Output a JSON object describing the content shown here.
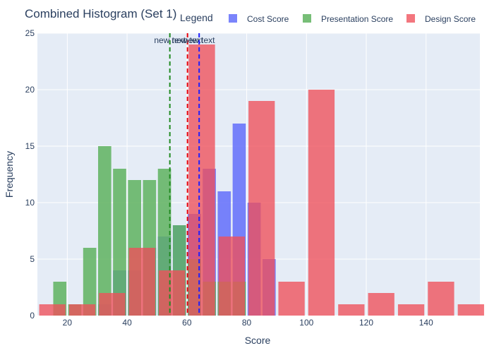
{
  "chart_data": {
    "type": "bar",
    "title": "Combined Histogram (Set 1)",
    "xlabel": "Score",
    "ylabel": "Frequency",
    "xlim": [
      10,
      158
    ],
    "ylim": [
      0,
      25
    ],
    "x_ticks": [
      20,
      40,
      60,
      80,
      100,
      120,
      140
    ],
    "y_ticks": [
      0,
      5,
      10,
      15,
      20,
      25
    ],
    "grid": true,
    "barmode": "overlay",
    "legend": {
      "title": "Legend",
      "placement": "top-right",
      "orientation": "horizontal"
    },
    "series": [
      {
        "name": "Cost Score",
        "color": "#636efa",
        "opacity": 0.85,
        "bin_width": 5,
        "bins": [
          {
            "x0": 30,
            "x1": 35,
            "count": 1
          },
          {
            "x0": 35,
            "x1": 40,
            "count": 4
          },
          {
            "x0": 40,
            "x1": 45,
            "count": 4
          },
          {
            "x0": 45,
            "x1": 50,
            "count": 6
          },
          {
            "x0": 50,
            "x1": 55,
            "count": 7
          },
          {
            "x0": 55,
            "x1": 60,
            "count": 8
          },
          {
            "x0": 60,
            "x1": 65,
            "count": 9
          },
          {
            "x0": 65,
            "x1": 70,
            "count": 13
          },
          {
            "x0": 70,
            "x1": 75,
            "count": 11
          },
          {
            "x0": 75,
            "x1": 80,
            "count": 17
          },
          {
            "x0": 80,
            "x1": 85,
            "count": 10
          },
          {
            "x0": 85,
            "x1": 90,
            "count": 5
          }
        ]
      },
      {
        "name": "Presentation Score",
        "color": "#5fb35f",
        "opacity": 0.85,
        "bin_width": 5,
        "bins": [
          {
            "x0": 15,
            "x1": 20,
            "count": 3
          },
          {
            "x0": 20,
            "x1": 25,
            "count": 1
          },
          {
            "x0": 25,
            "x1": 30,
            "count": 6
          },
          {
            "x0": 30,
            "x1": 35,
            "count": 15
          },
          {
            "x0": 35,
            "x1": 40,
            "count": 13
          },
          {
            "x0": 40,
            "x1": 45,
            "count": 12
          },
          {
            "x0": 45,
            "x1": 50,
            "count": 12
          },
          {
            "x0": 50,
            "x1": 55,
            "count": 13
          },
          {
            "x0": 55,
            "x1": 60,
            "count": 8
          },
          {
            "x0": 60,
            "x1": 65,
            "count": 5
          },
          {
            "x0": 65,
            "x1": 70,
            "count": 3
          },
          {
            "x0": 70,
            "x1": 75,
            "count": 3
          },
          {
            "x0": 75,
            "x1": 80,
            "count": 3
          }
        ]
      },
      {
        "name": "Design Score",
        "color": "#f0505a",
        "opacity": 0.78,
        "bin_width": 10,
        "bins": [
          {
            "x0": 10,
            "x1": 20,
            "count": 1
          },
          {
            "x0": 20,
            "x1": 30,
            "count": 1
          },
          {
            "x0": 30,
            "x1": 40,
            "count": 2
          },
          {
            "x0": 40,
            "x1": 50,
            "count": 6
          },
          {
            "x0": 50,
            "x1": 60,
            "count": 4
          },
          {
            "x0": 60,
            "x1": 70,
            "count": 24
          },
          {
            "x0": 70,
            "x1": 80,
            "count": 7
          },
          {
            "x0": 80,
            "x1": 90,
            "count": 19
          },
          {
            "x0": 90,
            "x1": 100,
            "count": 3
          },
          {
            "x0": 100,
            "x1": 110,
            "count": 20
          },
          {
            "x0": 110,
            "x1": 120,
            "count": 1
          },
          {
            "x0": 120,
            "x1": 130,
            "count": 2
          },
          {
            "x0": 130,
            "x1": 140,
            "count": 1
          },
          {
            "x0": 140,
            "x1": 150,
            "count": 3
          },
          {
            "x0": 150,
            "x1": 160,
            "count": 1
          }
        ]
      }
    ],
    "vlines": [
      {
        "x": 54.3,
        "color": "#228b22",
        "dash": "dashed",
        "label": "new text"
      },
      {
        "x": 60.2,
        "color": "#e8000b",
        "dash": "dashed",
        "label": "new text"
      },
      {
        "x": 64.1,
        "color": "#1f1fff",
        "dash": "dashed",
        "label": "new text"
      }
    ]
  }
}
